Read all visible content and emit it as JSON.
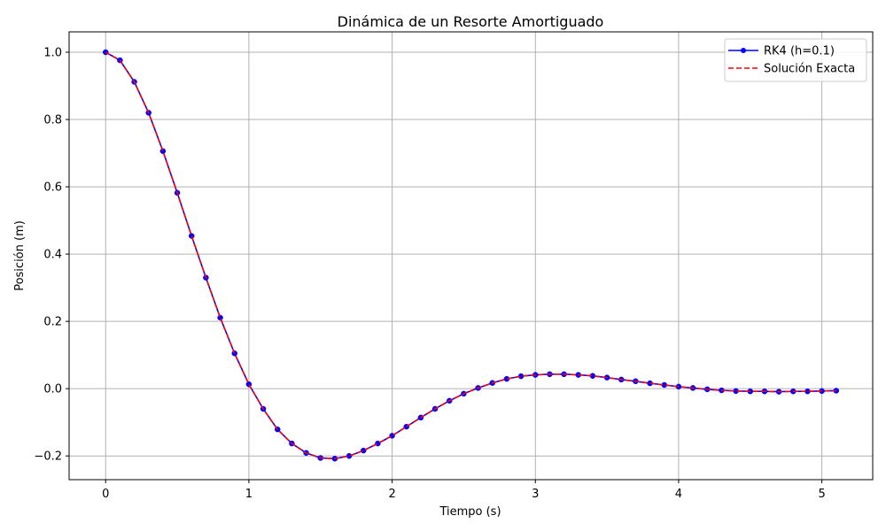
{
  "chart_data": {
    "type": "line",
    "title": "Dinámica de un Resorte Amortiguado",
    "xlabel": "Tiempo (s)",
    "ylabel": "Posición (m)",
    "xlim": [
      -0.255,
      5.355
    ],
    "ylim": [
      -0.2705,
      1.0605
    ],
    "xticks": [
      0,
      1,
      2,
      3,
      4,
      5
    ],
    "yticks": [
      -0.2,
      0.0,
      0.2,
      0.4,
      0.6,
      0.8,
      1.0
    ],
    "xtick_labels": [
      "0",
      "1",
      "2",
      "3",
      "4",
      "5"
    ],
    "ytick_labels": [
      "−0.2",
      "0.0",
      "0.2",
      "0.4",
      "0.6",
      "0.8",
      "1.0"
    ],
    "grid": true,
    "legend_position": "top-right",
    "x": [
      0.0,
      0.1,
      0.2,
      0.3,
      0.4,
      0.5,
      0.6,
      0.7,
      0.8,
      0.9,
      1.0,
      1.1,
      1.2,
      1.3,
      1.4,
      1.5,
      1.6,
      1.7,
      1.8,
      1.9,
      2.0,
      2.1,
      2.2,
      2.3,
      2.4,
      2.5,
      2.6,
      2.7,
      2.8,
      2.9,
      3.0,
      3.1,
      3.2,
      3.3,
      3.4,
      3.5,
      3.6,
      3.7,
      3.8,
      3.9,
      4.0,
      4.1,
      4.2,
      4.3,
      4.4,
      4.5,
      4.6,
      4.7,
      4.8,
      4.9,
      5.0,
      5.1
    ],
    "series": [
      {
        "name": "RK4 (h=0.1)",
        "color": "#0000ff",
        "marker_color": "#0000ff",
        "style": "solid-with-markers",
        "values": [
          1.0,
          0.976,
          0.912,
          0.82,
          0.706,
          0.582,
          0.454,
          0.33,
          0.211,
          0.105,
          0.013,
          -0.06,
          -0.121,
          -0.163,
          -0.191,
          -0.206,
          -0.208,
          -0.2,
          -0.184,
          -0.163,
          -0.14,
          -0.113,
          -0.086,
          -0.06,
          -0.036,
          -0.015,
          0.002,
          0.017,
          0.029,
          0.037,
          0.041,
          0.043,
          0.043,
          0.041,
          0.038,
          0.033,
          0.027,
          0.022,
          0.016,
          0.011,
          0.006,
          0.002,
          -0.002,
          -0.005,
          -0.007,
          -0.008,
          -0.008,
          -0.009,
          -0.008,
          -0.008,
          -0.007,
          -0.006
        ]
      },
      {
        "name": "Solución Exacta",
        "color": "#ff0000",
        "style": "dashed",
        "values": [
          1.0,
          0.976,
          0.912,
          0.82,
          0.706,
          0.582,
          0.454,
          0.33,
          0.211,
          0.105,
          0.013,
          -0.06,
          -0.121,
          -0.163,
          -0.191,
          -0.206,
          -0.208,
          -0.2,
          -0.184,
          -0.163,
          -0.14,
          -0.113,
          -0.086,
          -0.06,
          -0.036,
          -0.015,
          0.002,
          0.017,
          0.029,
          0.037,
          0.041,
          0.043,
          0.043,
          0.041,
          0.038,
          0.033,
          0.027,
          0.022,
          0.016,
          0.011,
          0.006,
          0.002,
          -0.002,
          -0.005,
          -0.007,
          -0.008,
          -0.008,
          -0.009,
          -0.008,
          -0.008,
          -0.007,
          -0.006
        ]
      }
    ]
  }
}
